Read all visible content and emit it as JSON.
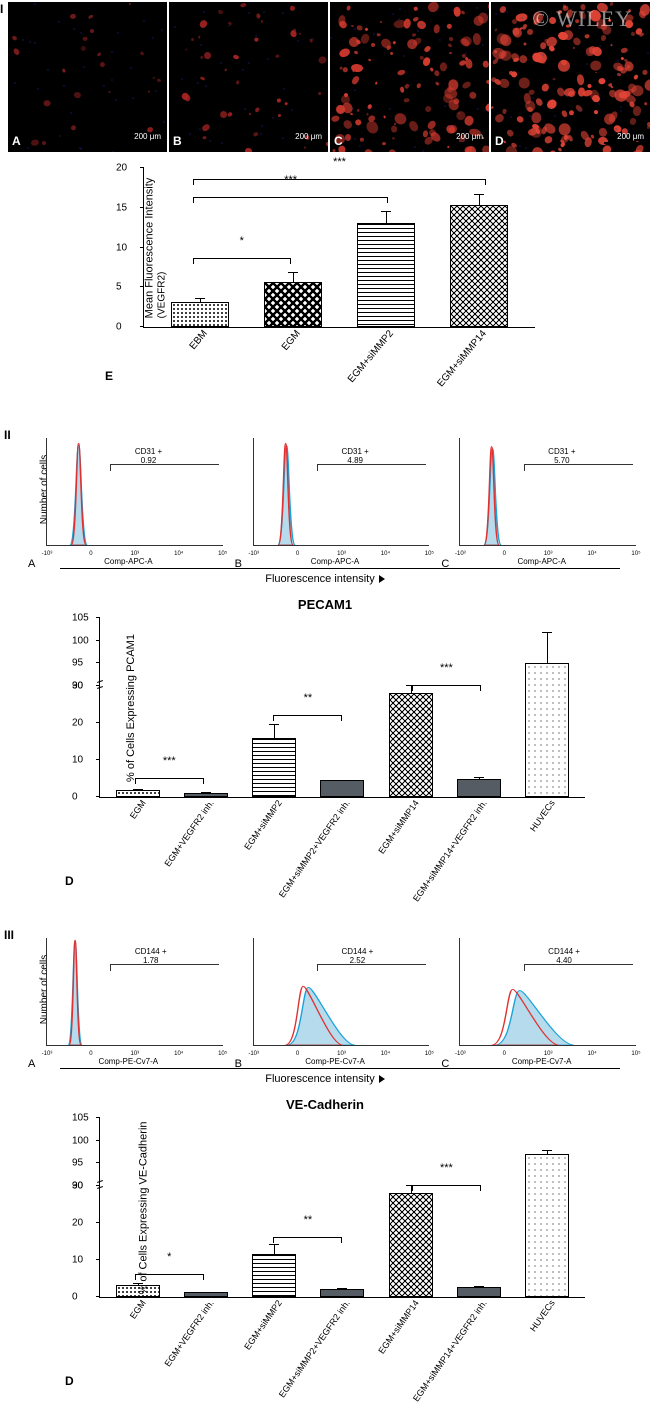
{
  "watermark": "© WILEY",
  "panel_I": {
    "roman": "I",
    "images": [
      {
        "letter": "A",
        "scale": "200 μm",
        "density": 0.1,
        "dotColor": "#8a1e1e"
      },
      {
        "letter": "B",
        "scale": "200 μm",
        "density": 0.18,
        "dotColor": "#a82424"
      },
      {
        "letter": "C",
        "scale": "200 μm",
        "density": 0.55,
        "dotColor": "#d23a2e"
      },
      {
        "letter": "D",
        "scale": "200 μm",
        "density": 0.75,
        "dotColor": "#e24436"
      }
    ],
    "chartE": {
      "ylabel": "Mean Fluorescence Intensity",
      "ylabel_sub": "(VEGFR2)",
      "ylim": [
        0,
        20
      ],
      "ytick_step": 5,
      "letter": "E",
      "bars": [
        {
          "label": "EBM",
          "value": 3.2,
          "err": 0.6,
          "pattern": "pattern-dense-dots"
        },
        {
          "label": "EGM",
          "value": 5.7,
          "err": 1.4,
          "pattern": "pattern-diamond"
        },
        {
          "label": "EGM+siMMP2",
          "value": 13.1,
          "err": 1.6,
          "pattern": "pattern-hlines"
        },
        {
          "label": "EGM+siMMP14",
          "value": 15.3,
          "err": 1.6,
          "pattern": "pattern-cross"
        }
      ],
      "sig": [
        {
          "from": 0,
          "to": 1,
          "y": 8.5,
          "text": "*"
        },
        {
          "from": 0,
          "to": 2,
          "y": 16.2,
          "text": "***"
        },
        {
          "from": 0,
          "to": 3,
          "y": 18.5,
          "text": "***"
        }
      ]
    }
  },
  "panel_II": {
    "roman": "II",
    "ylabel": "Number of cells",
    "xlabel_each": "Comp-APC-A",
    "xaxis_title": "Fluorescence intensity",
    "plots": [
      {
        "letter": "A",
        "gate_label": "CD31 +",
        "gate_value": "0.92",
        "peak_x": 0.18,
        "peak_w": 0.05,
        "peak_h": 0.95,
        "shift": 0.0
      },
      {
        "letter": "B",
        "gate_label": "CD31 +",
        "gate_value": "4.89",
        "peak_x": 0.18,
        "peak_w": 0.05,
        "peak_h": 0.95,
        "shift": 0.005
      },
      {
        "letter": "C",
        "gate_label": "CD31 +",
        "gate_value": "5.70",
        "peak_x": 0.18,
        "peak_w": 0.05,
        "peak_h": 0.92,
        "shift": 0.005
      }
    ],
    "section_title": "PECAM1",
    "chartD": {
      "ylabel": "% of Cells Expressing PCAM1",
      "letter": "D",
      "yticks_low": [
        0,
        10,
        20,
        30
      ],
      "yticks_high": [
        90,
        95,
        100,
        105
      ],
      "break_at": 30,
      "low_range": 30,
      "high_range": 15,
      "bars": [
        {
          "label": "EGM",
          "value": 2.0,
          "err": 0.5,
          "pattern": "pattern-dense-dots"
        },
        {
          "label": "EGM+VEGFR2 inh.",
          "value": 1.2,
          "err": 0.3,
          "pattern": "pattern-solid"
        },
        {
          "label": "EGM+siMMP2",
          "value": 16.0,
          "err": 4.0,
          "pattern": "pattern-hlines"
        },
        {
          "label": "EGM+siMMP2+VEGFR2 inh.",
          "value": 4.5,
          "err": 0.5,
          "pattern": "pattern-solid"
        },
        {
          "label": "EGM+siMMP14",
          "value": 28.0,
          "err": 2.5,
          "pattern": "pattern-cross"
        },
        {
          "label": "EGM+siMMP14+VEGFR2 inh.",
          "value": 5.0,
          "err": 0.6,
          "pattern": "pattern-solid"
        },
        {
          "label": "HUVECs",
          "value": 95.0,
          "err": 7.0,
          "pattern": "pattern-sparse-dots"
        }
      ],
      "sig": [
        {
          "from": 0,
          "to": 1,
          "y": 5,
          "text": "***"
        },
        {
          "from": 2,
          "to": 3,
          "y": 22,
          "text": "**"
        },
        {
          "from": 4,
          "to": 5,
          "y": 32,
          "text": "***"
        }
      ]
    }
  },
  "panel_III": {
    "roman": "III",
    "ylabel": "Number of cells",
    "xlabel_each": "Comp-PE-Cv7-A",
    "xaxis_title": "Fluorescence intensity",
    "plots": [
      {
        "letter": "A",
        "gate_label": "CD144 +",
        "gate_value": "1.78",
        "peak_x": 0.16,
        "peak_w": 0.04,
        "peak_h": 0.98,
        "shift": 0.0,
        "wide": false
      },
      {
        "letter": "B",
        "gate_label": "CD144 +",
        "gate_value": "2.52",
        "peak_x": 0.28,
        "peak_w": 0.12,
        "peak_h": 0.55,
        "shift": 0.03,
        "wide": true
      },
      {
        "letter": "C",
        "gate_label": "CD144 +",
        "gate_value": "4.40",
        "peak_x": 0.3,
        "peak_w": 0.14,
        "peak_h": 0.52,
        "shift": 0.04,
        "wide": true
      }
    ],
    "section_title": "VE-Cadherin",
    "chartD": {
      "ylabel": "% of Cells Expressing VE-Cadherin",
      "letter": "D",
      "yticks_low": [
        0,
        10,
        20,
        30
      ],
      "yticks_high": [
        90,
        95,
        100,
        105
      ],
      "break_at": 30,
      "low_range": 30,
      "high_range": 15,
      "bars": [
        {
          "label": "EGM",
          "value": 3.2,
          "err": 0.8,
          "pattern": "pattern-dense-dots"
        },
        {
          "label": "EGM+VEGFR2 inh.",
          "value": 1.3,
          "err": 0.3,
          "pattern": "pattern-solid"
        },
        {
          "label": "EGM+siMMP2",
          "value": 11.5,
          "err": 3.0,
          "pattern": "pattern-hlines"
        },
        {
          "label": "EGM+siMMP2+VEGFR2 inh.",
          "value": 2.2,
          "err": 0.4,
          "pattern": "pattern-solid"
        },
        {
          "label": "EGM+siMMP14",
          "value": 28.0,
          "err": 2.5,
          "pattern": "pattern-cross"
        },
        {
          "label": "EGM+siMMP14+VEGFR2 inh.",
          "value": 2.6,
          "err": 0.6,
          "pattern": "pattern-solid"
        },
        {
          "label": "HUVECs",
          "value": 97.0,
          "err": 1.2,
          "pattern": "pattern-sparse-dots"
        }
      ],
      "sig": [
        {
          "from": 0,
          "to": 1,
          "y": 6,
          "text": "*"
        },
        {
          "from": 2,
          "to": 3,
          "y": 16,
          "text": "**"
        },
        {
          "from": 4,
          "to": 5,
          "y": 32,
          "text": "***"
        }
      ]
    }
  },
  "colors": {
    "flow_red": "#e03030",
    "flow_blue_stroke": "#1aa3d8",
    "flow_blue_fill": "rgba(120,190,220,0.55)"
  }
}
